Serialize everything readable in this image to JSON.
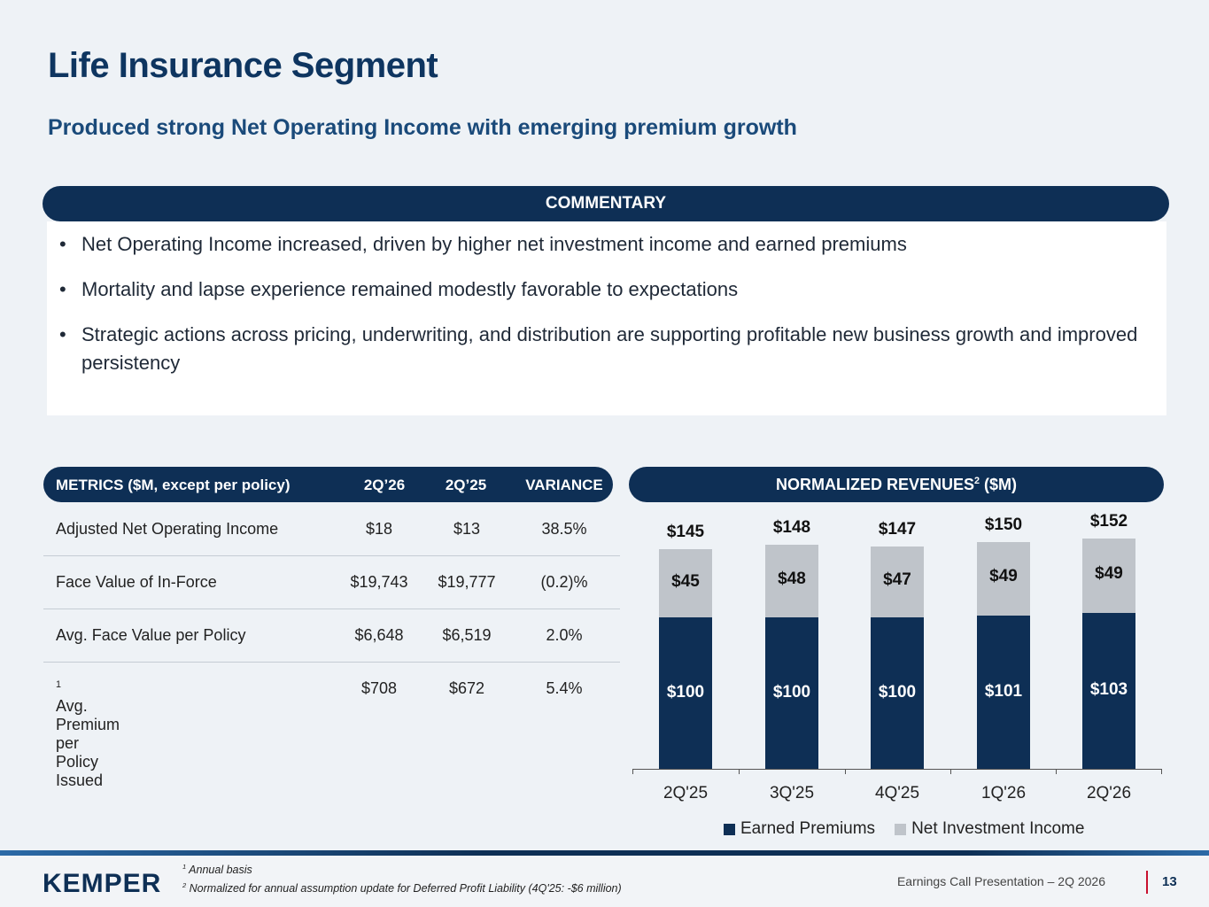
{
  "title": "Life Insurance Segment",
  "subtitle": "Produced strong Net Operating Income with emerging premium growth",
  "commentary": {
    "header": "COMMENTARY",
    "bullets": [
      "Net Operating Income increased, driven by higher net investment income and earned premiums",
      "Mortality and lapse experience remained modestly favorable to expectations",
      "Strategic actions across pricing, underwriting, and distribution are supporting profitable new business growth and improved persistency"
    ]
  },
  "metrics": {
    "header": {
      "label": "METRICS ($M, except per policy)",
      "col1": "2Q’26",
      "col2": "2Q’25",
      "col3": "VARIANCE"
    },
    "rows": [
      {
        "label": "Adjusted Net Operating Income",
        "v1": "$18",
        "v2": "$13",
        "var": "38.5%"
      },
      {
        "label": "Face Value of In-Force",
        "v1": "$19,743",
        "v2": "$19,777",
        "var": "(0.2)%"
      },
      {
        "label": "Avg. Face Value per Policy",
        "v1": "$6,648",
        "v2": "$6,519",
        "var": "2.0%"
      },
      {
        "label": "Avg. Premium per Policy Issued",
        "sup": "1",
        "v1": "$708",
        "v2": "$672",
        "var": "5.4%"
      }
    ]
  },
  "revenues": {
    "header": "NORMALIZED REVENUES",
    "header_sup": "2",
    "header_suffix": " ($M)"
  },
  "chart_data": {
    "type": "bar",
    "stacked": true,
    "categories": [
      "2Q'25",
      "3Q'25",
      "4Q'25",
      "1Q'26",
      "2Q'26"
    ],
    "series": [
      {
        "name": "Earned Premiums",
        "values": [
          100,
          100,
          100,
          101,
          103
        ],
        "labels": [
          "$100",
          "$100",
          "$100",
          "$101",
          "$103"
        ],
        "color": "#0e2f55"
      },
      {
        "name": "Net Investment Income",
        "values": [
          45,
          48,
          47,
          49,
          49
        ],
        "labels": [
          "$45",
          "$48",
          "$47",
          "$49",
          "$49"
        ],
        "color": "#bfc4ca"
      }
    ],
    "totals": [
      "$145",
      "$148",
      "$147",
      "$150",
      "$152"
    ],
    "legend": "bottom"
  },
  "footer": {
    "logo": "KEMPER",
    "footnote1_num": "1",
    "footnote1": " Annual basis",
    "footnote2_num": "2",
    "footnote2": " Normalized for annual assumption update for Deferred Profit Liability (4Q'25: -$6 million)",
    "presentation": "Earnings Call Presentation – 2Q 2026",
    "page": "13"
  },
  "colors": {
    "navy": "#0e2f55",
    "title": "#0e3560",
    "gray_bar": "#bfc4ca",
    "accent_red": "#c8102e"
  }
}
